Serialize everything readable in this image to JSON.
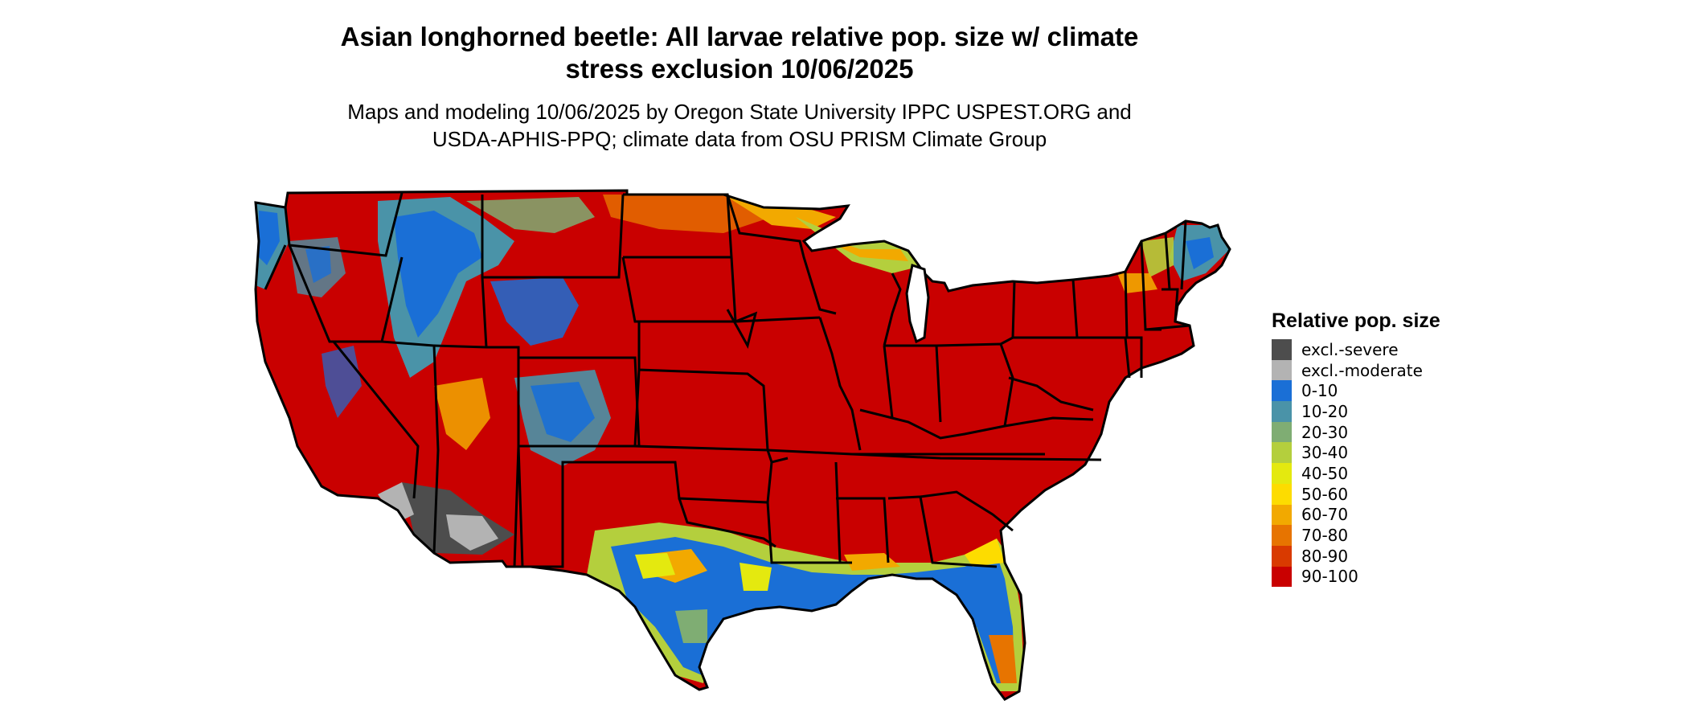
{
  "title": "Asian longhorned beetle: All larvae relative pop. size w/ climate\nstress exclusion 10/06/2025",
  "subtitle": "Maps and modeling 10/06/2025 by Oregon State University IPPC USPEST.ORG and\nUSDA-APHIS-PPQ; climate data from OSU PRISM Climate Group",
  "legend": {
    "title": "Relative pop. size",
    "items": [
      {
        "label": "excl.-severe",
        "color": "#4d4d4d"
      },
      {
        "label": "excl.-moderate",
        "color": "#b3b3b3"
      },
      {
        "label": "0-10",
        "color": "#1a6fd6"
      },
      {
        "label": "10-20",
        "color": "#4a93a8"
      },
      {
        "label": "20-30",
        "color": "#7fad73"
      },
      {
        "label": "30-40",
        "color": "#b4cf3d"
      },
      {
        "label": "40-50",
        "color": "#e4e90f"
      },
      {
        "label": "50-60",
        "color": "#fddc00"
      },
      {
        "label": "60-70",
        "color": "#f2a900"
      },
      {
        "label": "70-80",
        "color": "#e77400"
      },
      {
        "label": "80-90",
        "color": "#d93a00"
      },
      {
        "label": "90-100",
        "color": "#c90000"
      }
    ]
  },
  "map": {
    "region": "contiguous-united-states",
    "background_color": "#c90000",
    "border_color": "#000000"
  }
}
